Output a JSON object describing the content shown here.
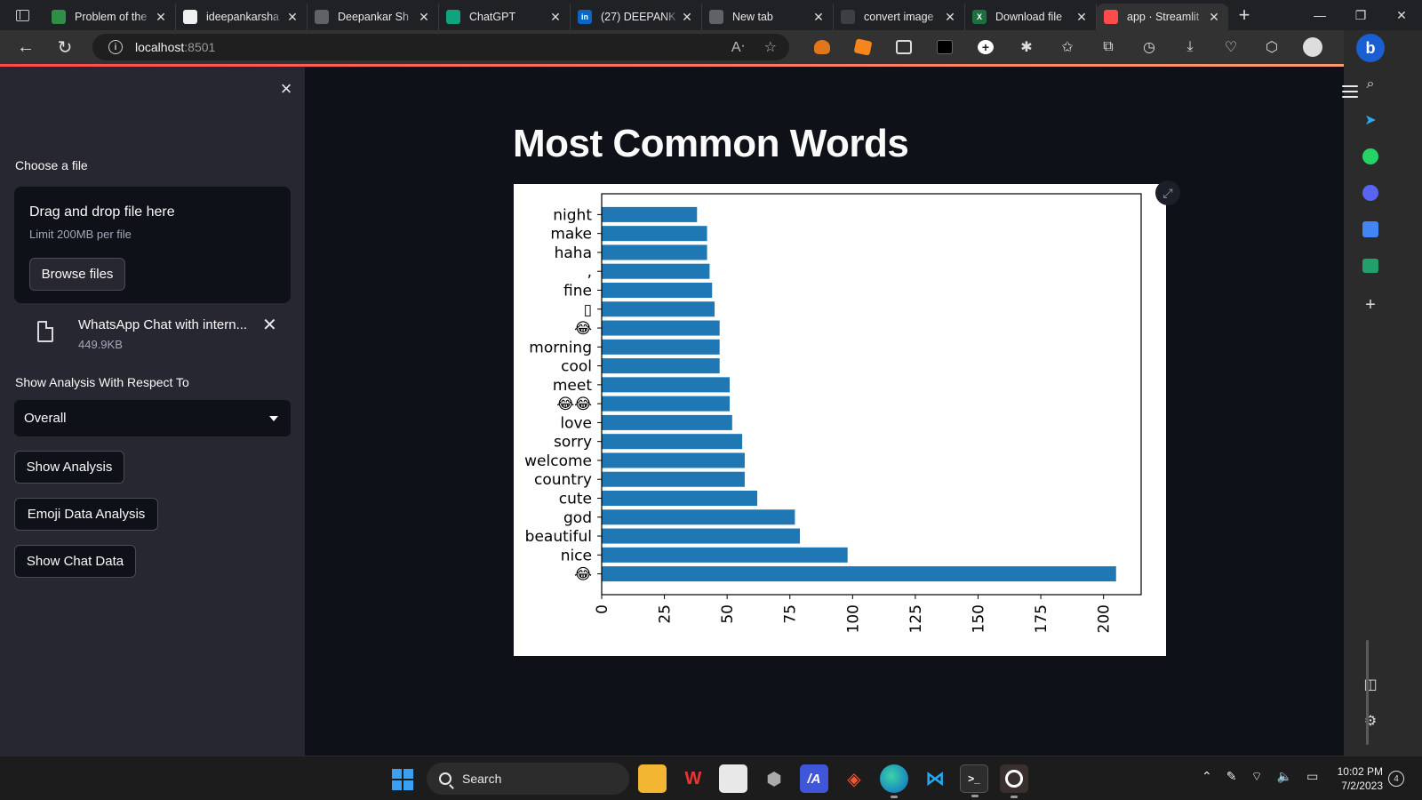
{
  "browser": {
    "tabs": [
      {
        "title": "Problem of the",
        "color": "#2f8d46",
        "glyph": ""
      },
      {
        "title": "ideepankarsha",
        "color": "#f0f0f0",
        "glyph": ""
      },
      {
        "title": "Deepankar Sh",
        "color": "#5f6368",
        "glyph": ""
      },
      {
        "title": "ChatGPT",
        "color": "#10a37f",
        "glyph": ""
      },
      {
        "title": "(27) DEEPANK",
        "color": "#0a66c2",
        "glyph": "in"
      },
      {
        "title": "New tab",
        "color": "#5f6368",
        "glyph": ""
      },
      {
        "title": "convert image",
        "color": "#3c4043",
        "glyph": ""
      },
      {
        "title": "Download file",
        "color": "#1d6f42",
        "glyph": "X"
      },
      {
        "title": "app · Streamlit",
        "color": "#ff4b4b",
        "glyph": ""
      }
    ],
    "active_tab_index": 8,
    "url_host": "localhost",
    "url_port": ":8501"
  },
  "sidebar": {
    "file_label": "Choose a file",
    "dropzone_title": "Drag and drop file here",
    "dropzone_limit": "Limit 200MB per file",
    "browse_button": "Browse files",
    "file_name": "WhatsApp Chat with intern...",
    "file_size": "449.9KB",
    "analysis_label": "Show Analysis With Respect To",
    "select_value": "Overall",
    "show_analysis_button": "Show Analysis",
    "emoji_button": "Emoji Data Analysis",
    "chat_data_button": "Show Chat Data"
  },
  "main": {
    "title": "Most Common Words"
  },
  "chart_data": {
    "type": "bar",
    "orientation": "horizontal",
    "categories": [
      "😂",
      "nice",
      "beautiful",
      "god",
      "cute",
      "country",
      "welcome",
      "sorry",
      "love",
      "😂😂",
      "meet",
      "cool",
      "morning",
      "😂",
      "▯",
      "fine",
      ",",
      "haha",
      "make",
      "night"
    ],
    "values": [
      205,
      98,
      79,
      77,
      62,
      57,
      57,
      56,
      52,
      51,
      51,
      47,
      47,
      47,
      45,
      44,
      43,
      42,
      42,
      38
    ],
    "xlim": [
      0,
      215
    ],
    "xticks": [
      0,
      25,
      50,
      75,
      100,
      125,
      150,
      175,
      200
    ],
    "bar_color": "#1f77b4",
    "grid": false,
    "title": "",
    "xlabel": "",
    "ylabel": ""
  },
  "taskbar": {
    "search_label": "Search",
    "time": "10:02 PM",
    "date": "7/2/2023",
    "notifications": "4"
  }
}
